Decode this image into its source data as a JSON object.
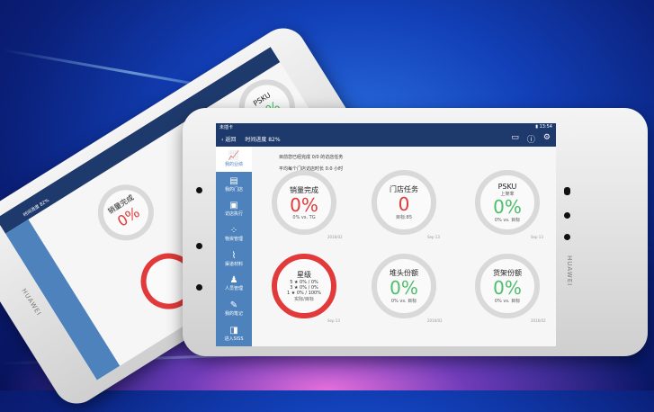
{
  "status": {
    "carrier": "未插卡",
    "time": "13:54"
  },
  "header": {
    "back_label": "返回",
    "progress_label": "时间进度 82%"
  },
  "brand": "HUAWEI",
  "summary": [
    "目前您已经完成 0/0 的访店任务",
    "平均每个门店访店时长 0.0 小时"
  ],
  "sidebar": {
    "items": [
      {
        "label": "我的业绩",
        "icon": "chart-icon",
        "active": true
      },
      {
        "label": "我的门店",
        "icon": "store-icon"
      },
      {
        "label": "访店执行",
        "icon": "clipboard-icon"
      },
      {
        "label": "物资管理",
        "icon": "grid-icon"
      },
      {
        "label": "渠道材料",
        "icon": "paperclip-icon"
      },
      {
        "label": "人员管理",
        "icon": "people-icon"
      },
      {
        "label": "我的笔记",
        "icon": "note-icon"
      },
      {
        "label": "进入SISS",
        "icon": "enter-icon"
      }
    ]
  },
  "cards": [
    {
      "title": "销量完成",
      "value": "0%",
      "sub": "0% vs. TG",
      "date": "2016/02",
      "value_color": "#e23a3a"
    },
    {
      "title": "门店任务",
      "value": "0",
      "sub": "目标:85",
      "date": "Sep 13",
      "value_color": "#e23a3a"
    },
    {
      "title": "PSKU",
      "subtitle": "上架率",
      "value": "0%",
      "sub": "0% vs. 目标",
      "date": "Sep 13",
      "value_color": "#4cbf6b"
    },
    {
      "title": "星级",
      "rows": [
        "5 ★ 0% / 0%",
        "3 ★ 0% / 0%",
        "1 ★ 0% / 100%"
      ],
      "sub": "实际/目标",
      "date": "Sep 13"
    },
    {
      "title": "堆头份额",
      "value": "0%",
      "sub": "0% vs. 目标",
      "date": "2016/02",
      "value_color": "#4cbf6b"
    },
    {
      "title": "货架份额",
      "value": "0%",
      "sub": "0% vs. 目标",
      "date": "2016/02",
      "value_color": "#4cbf6b"
    }
  ]
}
